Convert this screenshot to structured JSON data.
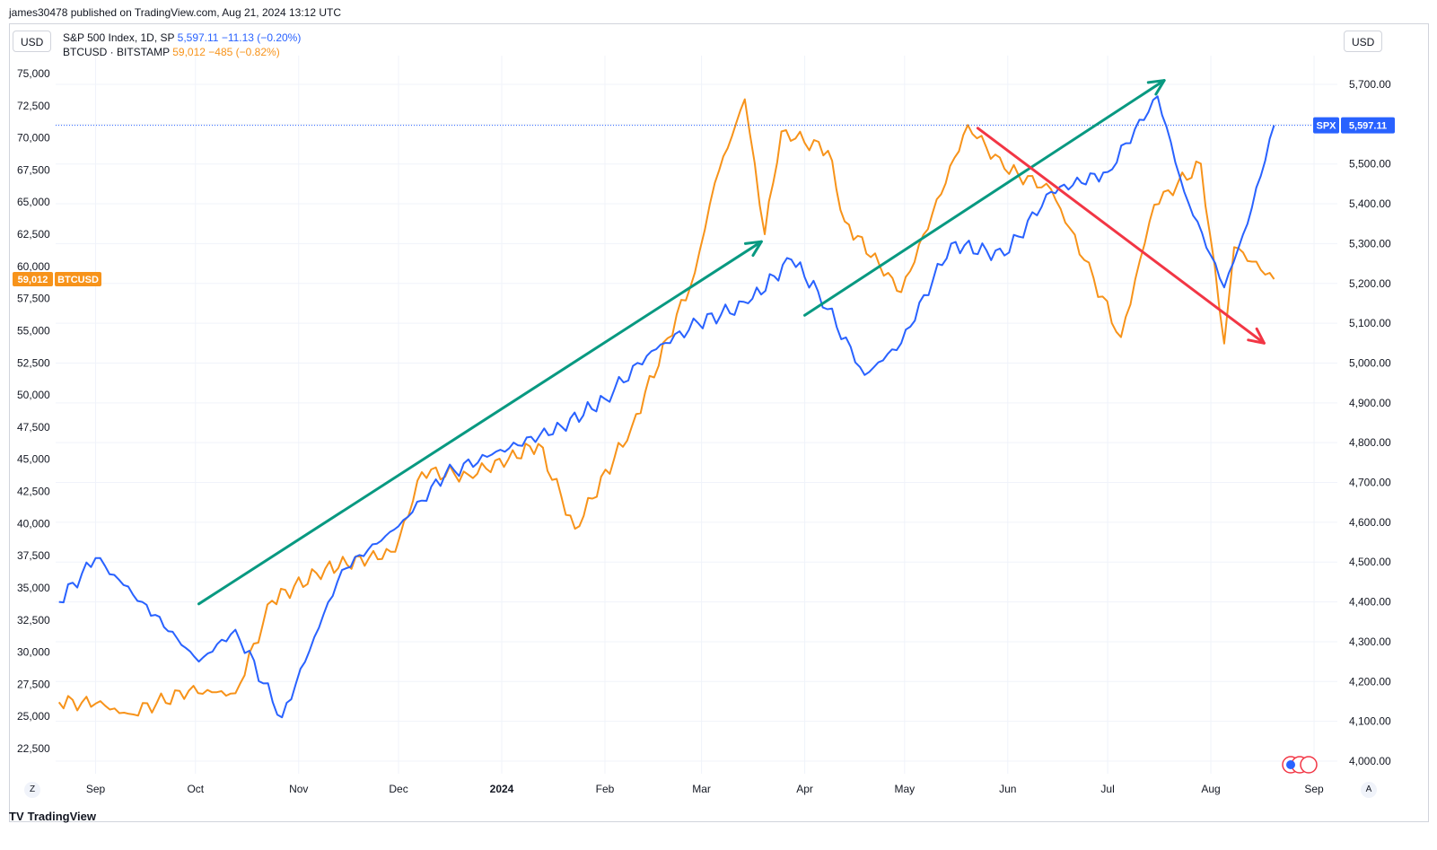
{
  "header": {
    "published": "james30478 published on TradingView.com, Aug 21, 2024 13:12 UTC"
  },
  "currency": {
    "left": "USD",
    "right": "USD"
  },
  "legend": {
    "spx": {
      "name": "S&P 500 Index, 1D, SP",
      "value": "5,597.11",
      "change": "−11.13 (−0.20%)"
    },
    "btc": {
      "name": "BTCUSD · BITSTAMP",
      "value": "59,012",
      "change": "−485 (−0.82%)"
    }
  },
  "price_tags": {
    "spx": {
      "label": "SPX",
      "value": "5,597.11",
      "color": "#2962ff"
    },
    "btc": {
      "value": "59,012",
      "label": "BTCUSD",
      "color": "#f7931a"
    }
  },
  "footer": {
    "brand": "TradingView",
    "logo": "TV",
    "left_button": "Z",
    "right_button": "A"
  },
  "colors": {
    "spx": "#2962ff",
    "btc": "#f7931a",
    "arrow_up": "#089981",
    "arrow_down": "#f23645",
    "grid": "#f0f3fa"
  },
  "chart_data": {
    "type": "line",
    "x_labels": [
      "Sep",
      "Oct",
      "Nov",
      "Dec",
      "2024",
      "Feb",
      "Mar",
      "Apr",
      "May",
      "Jun",
      "Jul",
      "Aug",
      "Sep"
    ],
    "left_axis": {
      "ticks": [
        "75,000",
        "72,500",
        "70,000",
        "67,500",
        "65,000",
        "62,500",
        "60,000",
        "57,500",
        "55,000",
        "52,500",
        "50,000",
        "47,500",
        "45,000",
        "42,500",
        "40,000",
        "37,500",
        "35,000",
        "32,500",
        "30,000",
        "27,500",
        "25,000",
        "22,500"
      ],
      "ylim": [
        22500,
        75000
      ]
    },
    "right_axis": {
      "ticks": [
        "5,700.00",
        "5,600.00",
        "5,500.00",
        "5,400.00",
        "5,300.00",
        "5,200.00",
        "5,100.00",
        "5,000.00",
        "4,900.00",
        "4,800.00",
        "4,700.00",
        "4,600.00",
        "4,500.00",
        "4,400.00",
        "4,300.00",
        "4,200.00",
        "4,100.00",
        "4,000.00"
      ],
      "ylim": [
        4000,
        5700
      ]
    },
    "series": [
      {
        "name": "S&P 500 Index",
        "axis": "right",
        "dates": [
          "2023-08-21",
          "2023-09-01",
          "2023-09-15",
          "2023-10-02",
          "2023-10-13",
          "2023-10-27",
          "2023-11-14",
          "2023-12-01",
          "2023-12-15",
          "2023-12-29",
          "2024-01-19",
          "2024-02-01",
          "2024-02-15",
          "2024-02-29",
          "2024-03-15",
          "2024-03-28",
          "2024-04-05",
          "2024-04-19",
          "2024-04-30",
          "2024-05-15",
          "2024-05-31",
          "2024-06-14",
          "2024-07-01",
          "2024-07-16",
          "2024-07-24",
          "2024-08-05",
          "2024-08-12",
          "2024-08-20"
        ],
        "values": [
          4400,
          4510,
          4400,
          4250,
          4330,
          4110,
          4480,
          4590,
          4720,
          4770,
          4840,
          4910,
          5030,
          5100,
          5150,
          5260,
          5180,
          4970,
          5050,
          5300,
          5270,
          5430,
          5480,
          5670,
          5430,
          5190,
          5350,
          5597.11
        ]
      },
      {
        "name": "BTCUSD",
        "axis": "left",
        "dates": [
          "2023-08-21",
          "2023-09-01",
          "2023-09-11",
          "2023-09-29",
          "2023-10-13",
          "2023-10-24",
          "2023-11-09",
          "2023-11-30",
          "2023-12-08",
          "2023-12-22",
          "2024-01-03",
          "2024-01-12",
          "2024-01-23",
          "2024-02-09",
          "2024-02-28",
          "2024-03-05",
          "2024-03-14",
          "2024-03-20",
          "2024-03-25",
          "2024-04-08",
          "2024-04-13",
          "2024-04-30",
          "2024-05-20",
          "2024-05-31",
          "2024-06-14",
          "2024-06-24",
          "2024-07-05",
          "2024-07-15",
          "2024-07-29",
          "2024-08-05",
          "2024-08-08",
          "2024-08-20"
        ],
        "values": [
          26100,
          26000,
          25200,
          27000,
          26800,
          34000,
          36500,
          37800,
          44000,
          43800,
          45000,
          46200,
          39600,
          47500,
          59500,
          66500,
          73000,
          62500,
          70500,
          69000,
          63500,
          58000,
          71000,
          67600,
          66000,
          60500,
          54500,
          64800,
          68000,
          54000,
          61500,
          59012
        ]
      }
    ],
    "annotations": [
      {
        "type": "arrow",
        "color": "#089981",
        "from": [
          "2023-10-02",
          4395
        ],
        "to": [
          "2024-03-19",
          5305
        ]
      },
      {
        "type": "arrow",
        "color": "#089981",
        "from": [
          "2024-04-01",
          5120
        ],
        "to": [
          "2024-07-18",
          5710
        ]
      },
      {
        "type": "arrow",
        "color": "#f23645",
        "from": [
          "2024-05-23",
          5590
        ],
        "to": [
          "2024-08-17",
          5050
        ]
      }
    ]
  }
}
